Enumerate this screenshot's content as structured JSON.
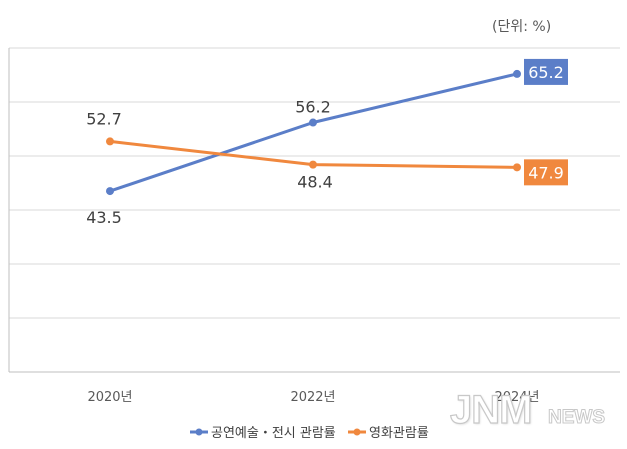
{
  "unit_label": "(단위: %)",
  "chart_data": {
    "type": "line",
    "title": "",
    "xlabel": "",
    "ylabel": "",
    "categories": [
      "2020년",
      "2022년",
      "2024년"
    ],
    "ylim": [
      10,
      70
    ],
    "grid": true,
    "legend": "bottom",
    "series": [
      {
        "name": "공연예술・전시 관람률",
        "values": [
          43.5,
          56.2,
          65.2
        ],
        "color": "#5b7ec8"
      },
      {
        "name": "영화관람률",
        "values": [
          52.7,
          48.4,
          47.9
        ],
        "color": "#f0883e"
      }
    ],
    "labels": [
      [
        "43.5",
        "56.2",
        "65.2"
      ],
      [
        "52.7",
        "48.4",
        "47.9"
      ]
    ]
  },
  "watermark": {
    "main": "JNM",
    "sub": "NEWS"
  }
}
